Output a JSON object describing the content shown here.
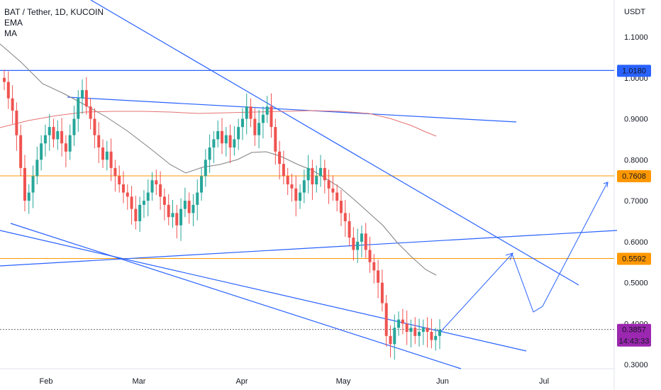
{
  "legend": {
    "symbol": "BAT / Tether, 1D, KUCOIN",
    "ind1": "EMA",
    "ind2": "MA"
  },
  "price_axis": {
    "unit": "USDT",
    "ticks": [
      "1.1000",
      "1.0000",
      "0.9000",
      "0.8000",
      "0.7000",
      "0.6000",
      "0.5000",
      "0.4000",
      "0.3000"
    ]
  },
  "time_axis": {
    "ticks": [
      "Feb",
      "Mar",
      "Apr",
      "May",
      "Jun",
      "Jul"
    ]
  },
  "colors": {
    "up": "#26a69a",
    "down": "#ef5350",
    "trendline": "#2962ff",
    "horizontal_blue": "#2962ff",
    "horizontal_orange": "#ff9800",
    "ma_gray": "#808080",
    "ema_pink": "#e57373",
    "last_price": "#9c27b0"
  },
  "chart_data": {
    "type": "candlestick",
    "title": "BAT / Tether, 1D, KUCOIN",
    "ylabel": "USDT",
    "ylim": [
      0.29,
      1.19
    ],
    "x_tick_labels": [
      "Feb",
      "Mar",
      "Apr",
      "May",
      "Jun",
      "Jul"
    ],
    "y_tick_labels": [
      "1.1000",
      "1.0000",
      "0.9000",
      "0.8000",
      "0.7000",
      "0.6000",
      "0.5000",
      "0.4000",
      "0.3000"
    ],
    "price_labels": [
      {
        "value": 1.018,
        "text": "1.0180",
        "color": "#2962ff"
      },
      {
        "value": 0.7608,
        "text": "0.7608",
        "color": "#ff9800"
      },
      {
        "value": 0.5592,
        "text": "0.5592",
        "color": "#ff9800"
      },
      {
        "value": 0.3857,
        "text": "0.3857",
        "color": "#9c27b0"
      }
    ],
    "countdown": "14:43:33",
    "horizontal_levels": [
      1.018,
      0.7608,
      0.5592
    ],
    "last_price": 0.3857,
    "closes": [
      0.99,
      0.95,
      0.92,
      0.86,
      0.78,
      0.7,
      0.72,
      0.76,
      0.8,
      0.84,
      0.86,
      0.88,
      0.85,
      0.87,
      0.84,
      0.82,
      0.86,
      0.9,
      0.95,
      0.97,
      0.93,
      0.9,
      0.86,
      0.83,
      0.8,
      0.82,
      0.78,
      0.76,
      0.74,
      0.72,
      0.71,
      0.68,
      0.65,
      0.69,
      0.7,
      0.72,
      0.75,
      0.74,
      0.71,
      0.69,
      0.66,
      0.67,
      0.64,
      0.68,
      0.7,
      0.67,
      0.69,
      0.72,
      0.76,
      0.8,
      0.83,
      0.85,
      0.87,
      0.84,
      0.86,
      0.83,
      0.85,
      0.88,
      0.9,
      0.93,
      0.9,
      0.86,
      0.89,
      0.91,
      0.93,
      0.88,
      0.82,
      0.79,
      0.76,
      0.74,
      0.73,
      0.7,
      0.72,
      0.75,
      0.78,
      0.74,
      0.76,
      0.78,
      0.75,
      0.73,
      0.72,
      0.7,
      0.67,
      0.65,
      0.61,
      0.58,
      0.6,
      0.62,
      0.58,
      0.55,
      0.53,
      0.5,
      0.45,
      0.37,
      0.35,
      0.39,
      0.41,
      0.4,
      0.38,
      0.39,
      0.37,
      0.38,
      0.39,
      0.38,
      0.36,
      0.37,
      0.385
    ]
  }
}
